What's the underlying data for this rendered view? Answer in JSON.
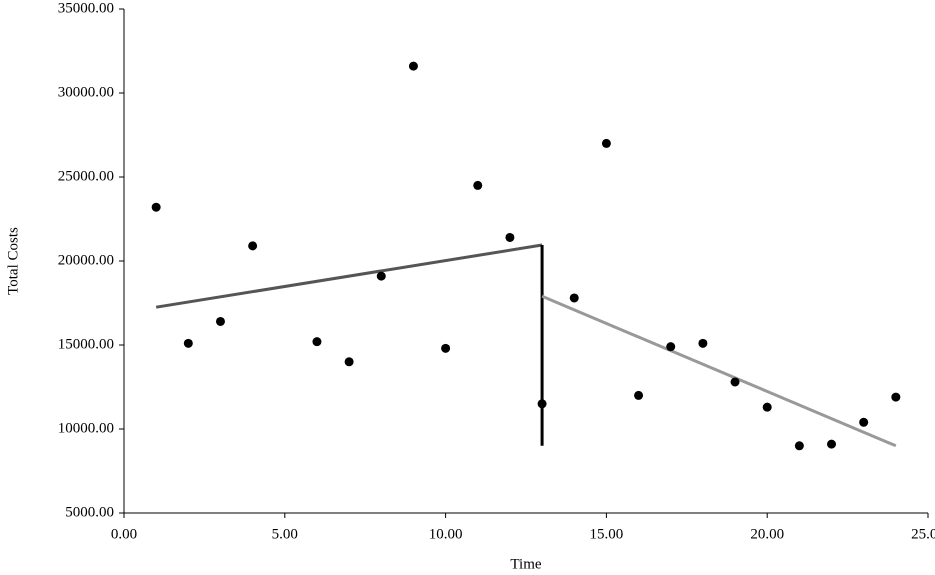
{
  "chart_data": {
    "type": "scatter",
    "xlabel": "Time",
    "ylabel": "Total Costs",
    "xlim": [
      0,
      25
    ],
    "ylim": [
      5000,
      35000
    ],
    "xticks": [
      {
        "value": 0,
        "label": "0.00"
      },
      {
        "value": 5,
        "label": "5.00"
      },
      {
        "value": 10,
        "label": "10.00"
      },
      {
        "value": 15,
        "label": "15.00"
      },
      {
        "value": 20,
        "label": "20.00"
      },
      {
        "value": 25,
        "label": "25.00"
      }
    ],
    "yticks": [
      {
        "value": 5000,
        "label": "5000.00"
      },
      {
        "value": 10000,
        "label": "10000.00"
      },
      {
        "value": 15000,
        "label": "15000.00"
      },
      {
        "value": 20000,
        "label": "20000.00"
      },
      {
        "value": 25000,
        "label": "25000.00"
      },
      {
        "value": 30000,
        "label": "30000.00"
      },
      {
        "value": 35000,
        "label": "35000.00"
      }
    ],
    "grid": false,
    "series": [
      {
        "color": "#000000",
        "x": [
          1,
          2,
          3,
          4,
          6,
          7,
          8,
          9,
          10,
          11,
          12,
          13,
          14,
          15,
          16,
          17,
          18,
          19,
          20,
          21,
          22,
          23,
          24
        ],
        "values": [
          23200,
          15100,
          16400,
          20900,
          15200,
          14000,
          19100,
          31600,
          14800,
          24500,
          21400,
          11500,
          17800,
          27000,
          12000,
          14900,
          15100,
          12800,
          11300,
          9000,
          9100,
          10400,
          11900
        ]
      }
    ],
    "lines": [
      {
        "color": "#555555",
        "x": [
          1,
          13
        ],
        "values": [
          17250,
          20950
        ]
      },
      {
        "color": "#000000",
        "x": [
          13,
          13
        ],
        "values": [
          9000,
          20950
        ]
      },
      {
        "color": "#999999",
        "x": [
          13,
          24
        ],
        "values": [
          17900,
          9000
        ]
      }
    ]
  }
}
